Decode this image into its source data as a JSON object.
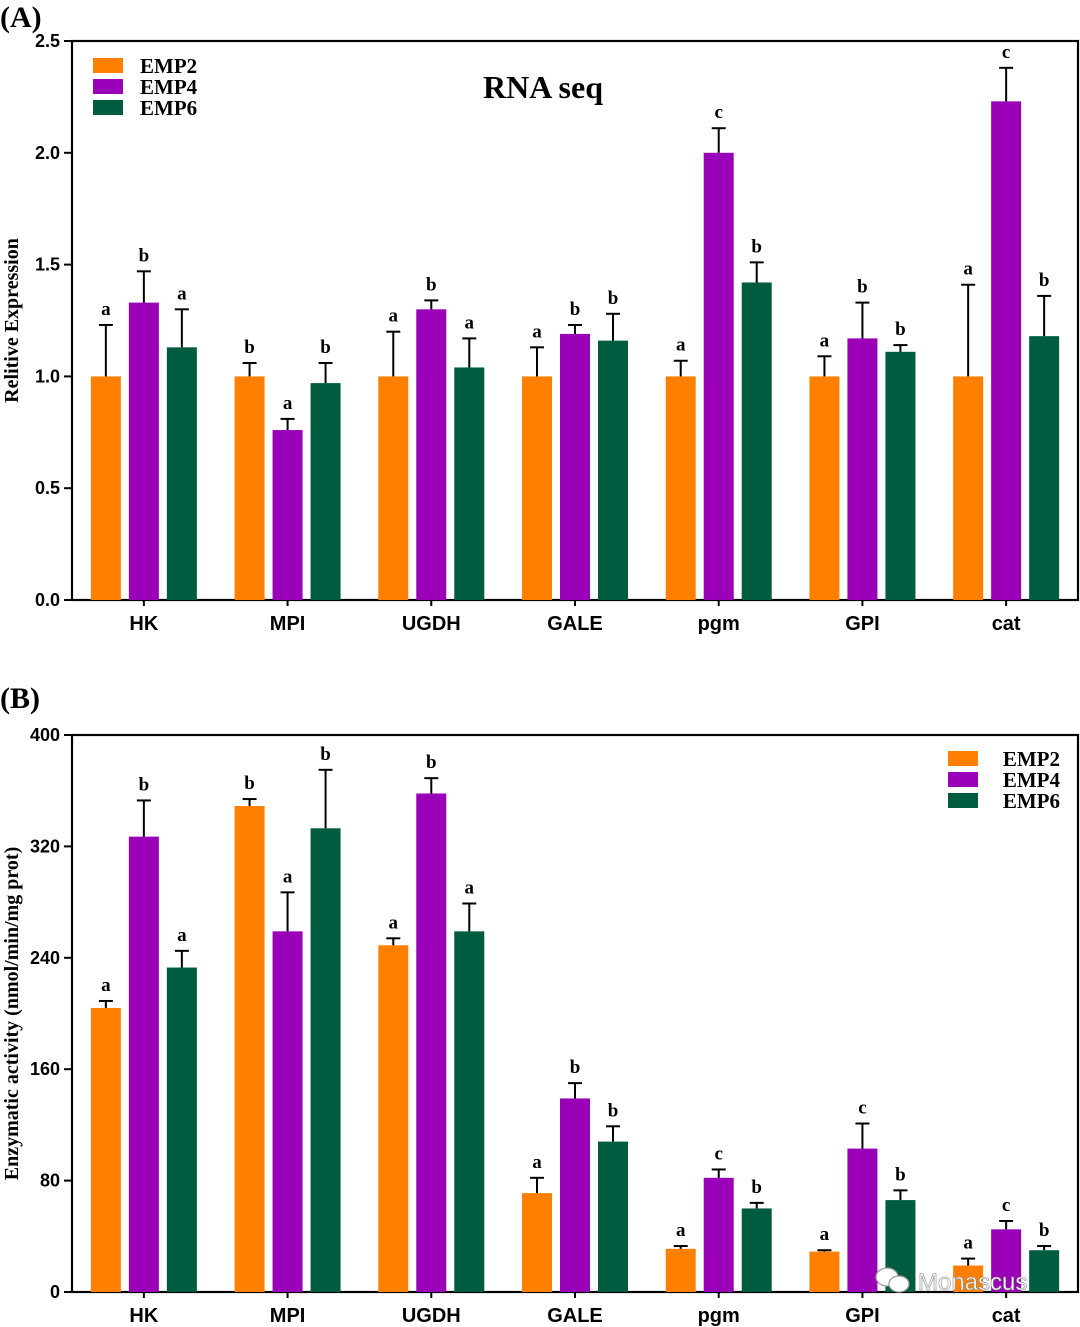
{
  "colors": {
    "EMP2": "#FF8000",
    "EMP4": "#9A00B8",
    "EMP6": "#005C40",
    "text": "#000000"
  },
  "watermark": "Monascus",
  "chart_data": [
    {
      "panel": "(A)",
      "type": "bar",
      "title": "RNA seq",
      "xlabel": "",
      "ylabel": "Relitive Expression",
      "ylim": [
        0,
        2.5
      ],
      "yticks": [
        "0.0",
        "0.5",
        "1.0",
        "1.5",
        "2.0",
        "2.5"
      ],
      "categories": [
        "HK",
        "MPI",
        "UGDH",
        "GALE",
        "pgm",
        "GPI",
        "cat"
      ],
      "legend_position": "top-left",
      "series": [
        {
          "name": "EMP2",
          "values": [
            1.0,
            1.0,
            1.0,
            1.0,
            1.0,
            1.0,
            1.0
          ],
          "errors": [
            0.23,
            0.06,
            0.2,
            0.13,
            0.07,
            0.09,
            0.41
          ],
          "letters": [
            "a",
            "b",
            "a",
            "a",
            "a",
            "a",
            "a"
          ]
        },
        {
          "name": "EMP4",
          "values": [
            1.33,
            0.76,
            1.3,
            1.19,
            2.0,
            1.17,
            2.23
          ],
          "errors": [
            0.14,
            0.05,
            0.04,
            0.04,
            0.11,
            0.16,
            0.15
          ],
          "letters": [
            "b",
            "a",
            "b",
            "b",
            "c",
            "b",
            "c"
          ]
        },
        {
          "name": "EMP6",
          "values": [
            1.13,
            0.97,
            1.04,
            1.16,
            1.42,
            1.11,
            1.18
          ],
          "errors": [
            0.17,
            0.09,
            0.13,
            0.12,
            0.09,
            0.03,
            0.18
          ],
          "letters": [
            "a",
            "b",
            "a",
            "b",
            "b",
            "b",
            "b"
          ]
        }
      ]
    },
    {
      "panel": "(B)",
      "type": "bar",
      "title": "",
      "xlabel": "",
      "ylabel": "Enzymatic activity (nmol/min/mg prot)",
      "ylim": [
        0,
        400
      ],
      "yticks": [
        "0",
        "80",
        "160",
        "240",
        "320",
        "400"
      ],
      "categories": [
        "HK",
        "MPI",
        "UGDH",
        "GALE",
        "pgm",
        "GPI",
        "cat"
      ],
      "legend_position": "top-right",
      "series": [
        {
          "name": "EMP2",
          "values": [
            204,
            349,
            249,
            71,
            31,
            29,
            19
          ],
          "errors": [
            5,
            5,
            5,
            11,
            2,
            1,
            5
          ],
          "letters": [
            "a",
            "b",
            "a",
            "a",
            "a",
            "a",
            "a"
          ]
        },
        {
          "name": "EMP4",
          "values": [
            327,
            259,
            358,
            139,
            82,
            103,
            45
          ],
          "errors": [
            26,
            28,
            11,
            11,
            6,
            18,
            6
          ],
          "letters": [
            "b",
            "a",
            "b",
            "b",
            "c",
            "c",
            "c"
          ]
        },
        {
          "name": "EMP6",
          "values": [
            233,
            333,
            259,
            108,
            60,
            66,
            30
          ],
          "errors": [
            12,
            42,
            20,
            11,
            4,
            7,
            3
          ],
          "letters": [
            "a",
            "b",
            "a",
            "b",
            "b",
            "b",
            "b"
          ]
        }
      ]
    }
  ]
}
